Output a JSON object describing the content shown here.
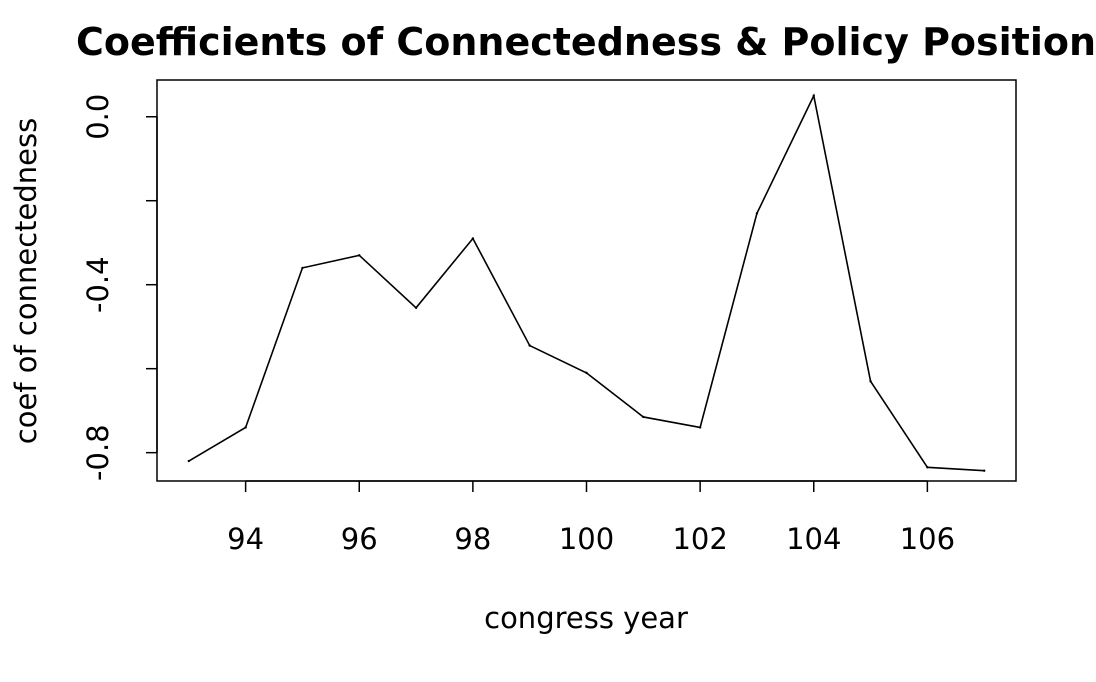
{
  "chart_data": {
    "type": "line",
    "title": "Coefficients of Connectedness & Policy Position",
    "xlabel": "congress year",
    "ylabel": "coef of connectedness",
    "x": [
      93,
      94,
      95,
      96,
      97,
      98,
      99,
      100,
      101,
      102,
      103,
      104,
      105,
      106,
      107
    ],
    "y": [
      -0.82,
      -0.74,
      -0.36,
      -0.33,
      -0.455,
      -0.29,
      -0.545,
      -0.61,
      -0.715,
      -0.74,
      -0.23,
      0.05,
      -0.63,
      -0.835,
      -0.843
    ],
    "xlim": [
      92.44,
      107.56
    ],
    "ylim": [
      -0.8675,
      0.0875
    ],
    "xticks": [
      "94",
      "96",
      "98",
      "100",
      "102",
      "104",
      "106"
    ],
    "yticks": [
      "-0.8",
      "-0.4",
      "0.0"
    ],
    "grid": false,
    "line_color": "#000000"
  }
}
